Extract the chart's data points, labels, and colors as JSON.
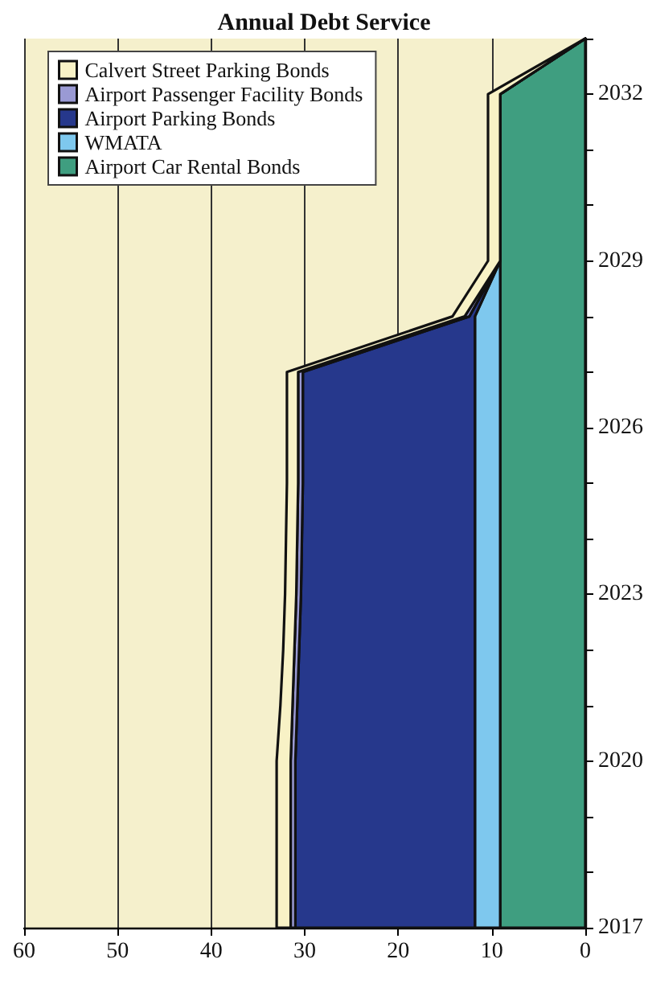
{
  "chart_data": {
    "type": "area",
    "title": "Annual Debt Service",
    "stacked": true,
    "orientation": "horizontal",
    "x": [
      2017,
      2018,
      2019,
      2020,
      2021,
      2022,
      2023,
      2024,
      2025,
      2026,
      2027,
      2028,
      2029,
      2030,
      2031,
      2032,
      2033
    ],
    "series": [
      {
        "name": "Airport Car Rental Bonds",
        "color": "#3f9e80",
        "values": [
          9.1,
          9.1,
          9.1,
          9.1,
          9.1,
          9.1,
          9.1,
          9.1,
          9.1,
          9.1,
          9.1,
          9.1,
          9.1,
          9.1,
          9.1,
          9.1,
          0
        ]
      },
      {
        "name": "WMATA",
        "color": "#7ec8ee",
        "values": [
          2.7,
          2.7,
          2.7,
          2.7,
          2.7,
          2.7,
          2.7,
          2.7,
          2.7,
          2.7,
          2.7,
          2.7,
          0,
          0,
          0,
          0,
          0
        ]
      },
      {
        "name": "Airport Parking Bonds",
        "color": "#26388c",
        "values": [
          19.2,
          19.2,
          19.2,
          19.2,
          19.0,
          18.8,
          18.6,
          18.5,
          18.4,
          18.4,
          18.4,
          0.6,
          0,
          0,
          0,
          0,
          0
        ]
      },
      {
        "name": "Airport Passenger Facility Bonds",
        "color": "#9a9ad4",
        "values": [
          0.5,
          0.5,
          0.5,
          0.5,
          0.5,
          0.5,
          0.5,
          0.5,
          0.5,
          0.5,
          0.5,
          0.5,
          0,
          0,
          0,
          0,
          0
        ]
      },
      {
        "name": "Calvert Street Parking Bonds",
        "color": "#f8f2c6",
        "values": [
          1.5,
          1.5,
          1.5,
          1.5,
          1.3,
          1.2,
          1.2,
          1.2,
          1.2,
          1.2,
          1.2,
          1.3,
          1.3,
          1.3,
          1.3,
          1.3,
          0
        ]
      }
    ],
    "ylim": [
      2017,
      2033
    ],
    "yticks": [
      2017,
      {
        "value": 2018,
        "label": null
      },
      {
        "value": 2019,
        "label": null
      },
      2020,
      {
        "value": 2021,
        "label": null
      },
      {
        "value": 2022,
        "label": null
      },
      2023,
      {
        "value": 2024,
        "label": null
      },
      {
        "value": 2025,
        "label": null
      },
      2026,
      {
        "value": 2027,
        "label": null
      },
      {
        "value": 2028,
        "label": null
      },
      2029,
      {
        "value": 2030,
        "label": null
      },
      {
        "value": 2031,
        "label": null
      },
      2032,
      {
        "value": 2033,
        "label": null
      }
    ],
    "xlim": [
      60,
      0
    ],
    "xticks": [
      0,
      10,
      20,
      30,
      40,
      50,
      60
    ],
    "grid": "x",
    "legend": "top left"
  }
}
